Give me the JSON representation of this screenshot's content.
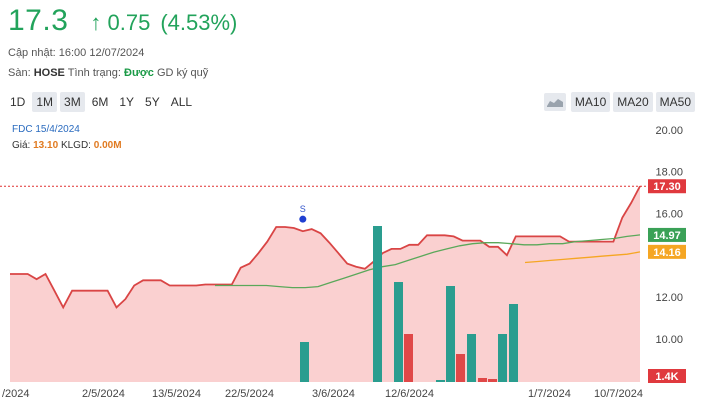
{
  "quote": {
    "price": "17.3",
    "arrow": "↑",
    "change": "0.75",
    "change_pct": "(4.53%)",
    "color": "#22a35b"
  },
  "meta": {
    "updated_label": "Cập nhật:",
    "updated_value": "16:00 12/07/2024",
    "exchange_label": "Sàn:",
    "exchange_value": "HOSE",
    "status_label": "Tình trạng:",
    "status_value": "Được",
    "status_suffix": "GD ký quỹ"
  },
  "range_tabs": [
    "1D",
    "1M",
    "3M",
    "6M",
    "1Y",
    "5Y",
    "ALL"
  ],
  "range_active": [
    "1M",
    "3M"
  ],
  "ma_tabs": [
    "MA10",
    "MA20",
    "MA50"
  ],
  "tooltip": {
    "date": "FDC 15/4/2024",
    "price_label": "Giá:",
    "price_value": "13.10",
    "vol_label": "KLGD:",
    "vol_value": "0.00M"
  },
  "chart_data": {
    "type": "line",
    "y_ticks": [
      "20.00",
      "18.00",
      "16.00",
      "12.00",
      "10.00"
    ],
    "x_labels": [
      "/2024",
      "2/5/2024",
      "13/5/2024",
      "22/5/2024",
      "3/6/2024",
      "12/6/2024",
      "1/7/2024",
      "10/7/2024"
    ],
    "price_series": [
      13.1,
      13.1,
      13.1,
      12.85,
      13.1,
      12.3,
      11.5,
      12.3,
      12.3,
      12.3,
      12.3,
      12.3,
      11.5,
      11.9,
      12.55,
      12.8,
      12.8,
      12.8,
      12.55,
      12.55,
      12.55,
      12.55,
      12.6,
      12.6,
      12.6,
      12.6,
      13.4,
      13.6,
      14.1,
      14.65,
      15.35,
      15.35,
      15.3,
      15.15,
      15.25,
      15.05,
      14.6,
      14.1,
      13.6,
      13.45,
      13.35,
      13.7,
      14.1,
      14.3,
      14.3,
      14.5,
      14.5,
      14.95,
      14.95,
      14.95,
      14.9,
      14.7,
      14.7,
      14.7,
      14.4,
      14.4,
      14.0,
      14.9,
      14.9,
      14.9,
      14.9,
      14.9,
      14.9,
      14.65,
      14.65,
      14.65,
      14.65,
      14.65,
      14.65,
      15.8,
      16.5,
      17.3
    ],
    "ma_green": [
      12.55,
      12.55,
      12.55,
      12.55,
      12.55,
      12.5,
      12.45,
      12.45,
      12.5,
      12.7,
      12.9,
      13.1,
      13.3,
      13.45,
      13.55,
      13.75,
      13.95,
      14.15,
      14.3,
      14.45,
      14.55,
      14.6,
      14.6,
      14.55,
      14.5,
      14.5,
      14.55,
      14.55,
      14.65,
      14.7,
      14.75,
      14.8,
      14.9,
      14.97
    ],
    "ma_orange": [
      13.65,
      13.7,
      13.75,
      13.8,
      13.85,
      13.9,
      13.95,
      14.0,
      14.05,
      14.16
    ],
    "badges": {
      "last": "17.30",
      "ma_green": "14.97",
      "ma_orange": "14.16",
      "volume": "1.4K"
    },
    "marker_label": "S",
    "volume_bars": [
      {
        "c": "green",
        "v": 1.0
      },
      {
        "c": "green",
        "v": 3.9
      },
      {
        "c": "green",
        "v": 2.5
      },
      {
        "c": "red",
        "v": 1.2
      },
      {
        "c": "green",
        "v": 0.05
      },
      {
        "c": "green",
        "v": 2.4
      },
      {
        "c": "red",
        "v": 0.7
      },
      {
        "c": "green",
        "v": 1.2
      },
      {
        "c": "red",
        "v": 0.1
      },
      {
        "c": "green",
        "v": 1.2
      },
      {
        "c": "green",
        "v": 1.95
      }
    ],
    "colors": {
      "price": "#d94545",
      "fill": "#f9c8c8",
      "ma_green": "#5aa85a",
      "ma_orange": "#f5a623",
      "vol_green": "#2a9d8f",
      "vol_red": "#e04848",
      "badge_red": "#e0393e",
      "badge_green": "#3aa157",
      "badge_orange": "#f5a623",
      "ref_line": "#e03030"
    }
  }
}
